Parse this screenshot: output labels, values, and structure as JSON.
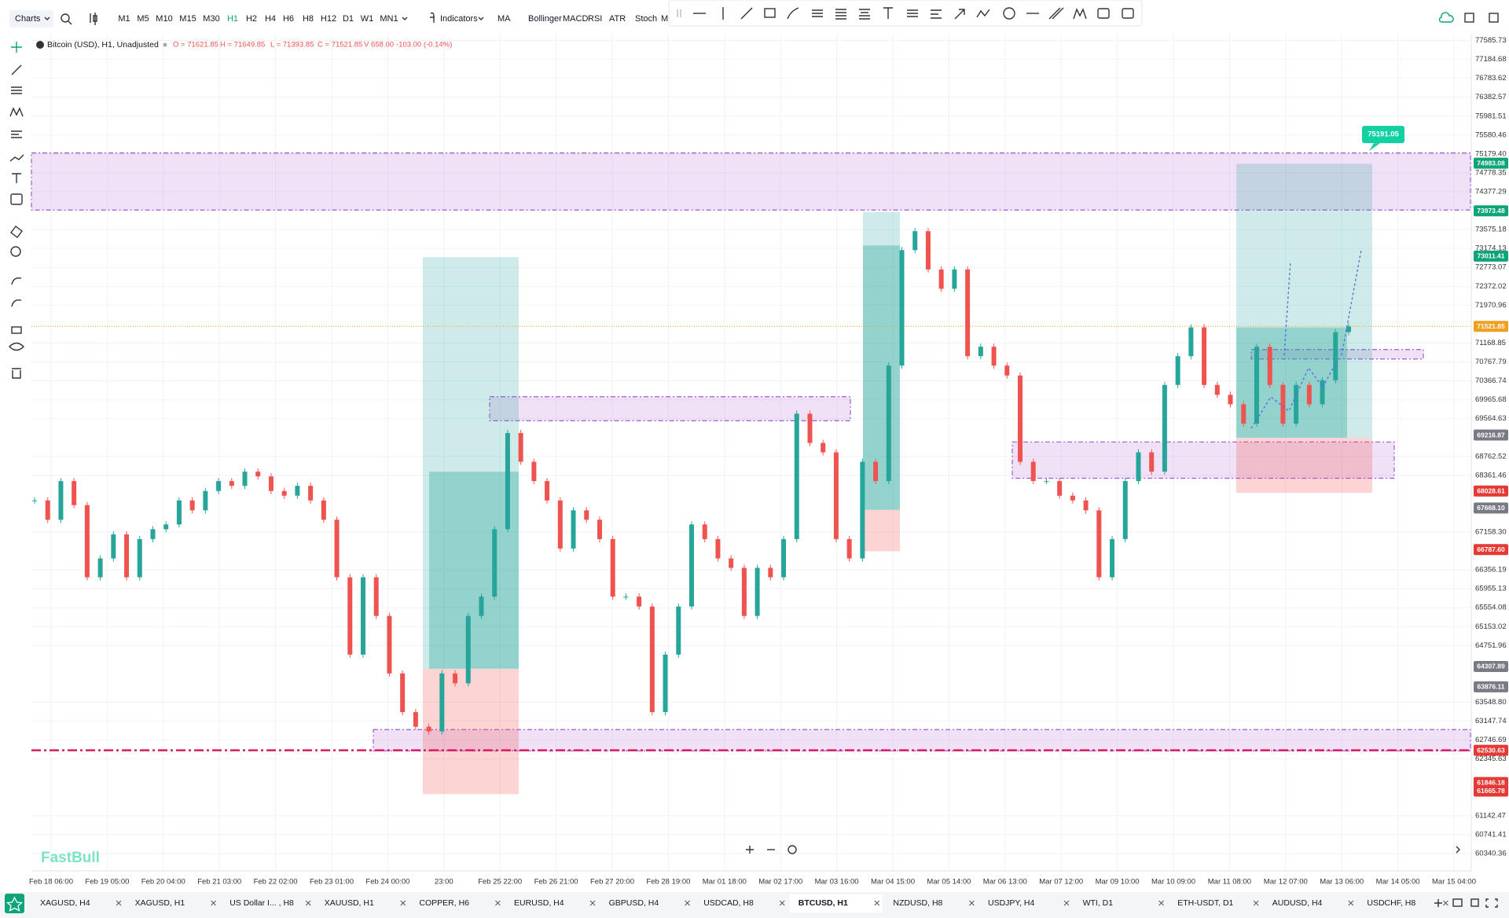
{
  "toolbar": {
    "charts": "Charts",
    "timeframes": [
      "M1",
      "M5",
      "M10",
      "M15",
      "M30",
      "H1",
      "H2",
      "H4",
      "H6",
      "H8",
      "H12",
      "D1",
      "W1",
      "MN1"
    ],
    "active_timeframe_index": 5,
    "indicators_button": "Indicators",
    "indicators": [
      "MA",
      "Bollinger",
      "MACD",
      "RSI",
      "ATR",
      "Stoch",
      "MFI"
    ]
  },
  "legend": {
    "symbol": "Bitcoin (USD), H1, Unadjusted",
    "ohlc": [
      "O = 71621.85",
      "H = 71649.85",
      "L = 71393.85",
      "C = 71521.85",
      "V 658.00"
    ],
    "change": "-103.00 (-0.14%)"
  },
  "watermark": "FastBull",
  "chart_data": {
    "type": "candlestick",
    "up_color": "#26a69a",
    "down_color": "#ef5350",
    "values": [
      67830,
      67420,
      68240,
      67730,
      66200,
      66600,
      67110,
      66200,
      67010,
      67220,
      67320,
      67830,
      67620,
      68030,
      68240,
      68140,
      68440,
      68340,
      68030,
      67930,
      68140,
      67830,
      67420,
      66200,
      64560,
      66200,
      65380,
      64160,
      63340,
      63030,
      62930,
      64160,
      63950,
      65380,
      65790,
      67220,
      69260,
      68650,
      68240,
      67830,
      66810,
      67620,
      67420,
      67010,
      65790,
      65790,
      65580,
      63340,
      64560,
      65580,
      67320,
      67010,
      66600,
      66400,
      65380,
      66400,
      66200,
      67010,
      69670,
      69050,
      68850,
      67010,
      66600,
      68650,
      68240,
      70690,
      73140,
      73540,
      72730,
      72320,
      72730,
      70890,
      71090,
      70690,
      70480,
      68650,
      68240,
      68240,
      67930,
      67830,
      67620,
      66200,
      67010,
      68240,
      68850,
      68440,
      70280,
      70890,
      71500,
      70280,
      70070,
      69870,
      69460,
      71090,
      70280,
      69460,
      70280,
      69870,
      70380,
      71400,
      71520
    ],
    "x_axis_labels": [
      "Feb 18 06:00",
      "Feb 19 05:00",
      "Feb 20 04:00",
      "Feb 21 03:00",
      "Feb 22 02:00",
      "Feb 23 01:00",
      "Feb 24 00:00",
      "23:00",
      "Feb 25 22:00",
      "Feb 26 21:00",
      "Feb 27 20:00",
      "Feb 28 19:00",
      "Mar 01 18:00",
      "Mar 02 17:00",
      "Mar 03 16:00",
      "Mar 04 15:00",
      "Mar 05 14:00",
      "Mar 06 13:00",
      "Mar 07 12:00",
      "Mar 09 10:00",
      "Mar 10 09:00",
      "Mar 11 08:00",
      "Mar 12 07:00",
      "Mar 13 06:00",
      "Mar 14 05:00",
      "Mar 15 04:00"
    ],
    "ylim": [
      59973,
      77728
    ],
    "yticks": [
      77585.73,
      77184.68,
      76783.62,
      76382.57,
      75981.51,
      75580.46,
      {
        "value": 75179.4,
        "label": "75179.40"
      },
      74778.35,
      74377.29,
      73575.18,
      73174.13,
      72773.07,
      72372.02,
      71970.96,
      71168.85,
      70767.79,
      70366.74,
      69965.68,
      69564.63,
      68762.52,
      68361.46,
      {
        "value": 67158.3,
        "label": "67158.30"
      },
      66356.19,
      65955.13,
      65554.08,
      65153.02,
      64751.96,
      {
        "value": 63548.8,
        "label": "63548.80"
      },
      63147.74,
      62746.69,
      62345.63,
      61142.47,
      60741.41,
      60340.36
    ],
    "grid": true,
    "price_badges": [
      {
        "value": 74983.08,
        "color": "#0ea47a"
      },
      {
        "value": 73973.48,
        "color": "#0ea47a"
      },
      {
        "value": 73011.41,
        "color": "#0ea47a"
      },
      {
        "value": 71521.85,
        "color": "#f0a020"
      },
      {
        "value": 69216.87,
        "color": "#787b86"
      },
      {
        "value": 68028.61,
        "color": "#e53935"
      },
      {
        "value": 67668.1,
        "label": "67668.10",
        "color": "#787b86"
      },
      {
        "value": 66787.6,
        "label": "66787.60",
        "color": "#e53935"
      },
      {
        "value": 64307.89,
        "color": "#787b86"
      },
      {
        "value": 63876.11,
        "color": "#787b86"
      },
      {
        "value": 62530.63,
        "color": "#e53935"
      },
      {
        "value": 61846.18,
        "color": "#e53935"
      },
      {
        "value": 61665.78,
        "color": "#e53935"
      }
    ],
    "callout": 75191.05,
    "current_price": 71521.85,
    "support_line": 62530.63,
    "zones": [
      {
        "high": 75200,
        "low": 73990
      },
      {
        "high": 70030,
        "low": 69520
      },
      {
        "high": 62970,
        "low": 62520
      },
      {
        "high": 69070,
        "low": 68300
      },
      {
        "high": 71030,
        "low": 70830
      }
    ],
    "positions": [
      {
        "target": 72990,
        "entry": 64260,
        "stop": 61600,
        "price": 68440
      },
      {
        "target": 73950,
        "entry": 67630,
        "stop": 66750,
        "price": 73240
      },
      {
        "target": 74970,
        "entry": 69160,
        "stop": 67990,
        "price": 71500
      }
    ]
  },
  "tabs": [
    "XAGUSD, H4",
    "XAGUSD, H1",
    "US Dollar I... , H8",
    "XAUUSD, H1",
    "COPPER, H6",
    "EURUSD, H4",
    "GBPUSD, H4",
    "USDCAD, H8",
    "BTCUSD, H1",
    "NZDUSD, H8",
    "USDJPY, H4",
    "WTI, D1",
    "ETH-USDT, D1",
    "AUDUSD, H4",
    "USDCHF, H8"
  ],
  "active_tab": 8
}
